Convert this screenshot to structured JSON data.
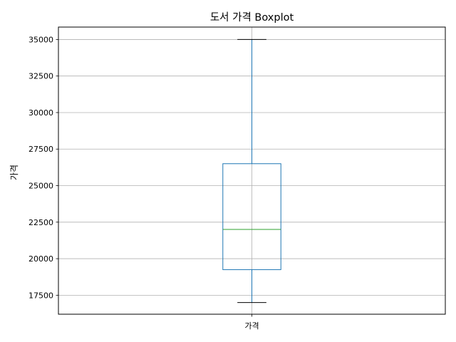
{
  "chart_data": {
    "type": "boxplot",
    "title": "도서 가격 Boxplot",
    "xlabel": "",
    "ylabel": "가격",
    "categories": [
      "가격"
    ],
    "boxes": [
      {
        "category": "가격",
        "whisker_low": 17000,
        "q1": 19250,
        "median": 22000,
        "q3": 26500,
        "whisker_high": 35000
      }
    ],
    "ylim": [
      16200,
      35850
    ],
    "yticks": [
      17500,
      20000,
      22500,
      25000,
      27500,
      30000,
      32500,
      35000
    ],
    "ytick_labels": [
      "17500",
      "20000",
      "22500",
      "25000",
      "27500",
      "30000",
      "32500",
      "35000"
    ],
    "grid": true,
    "colors": {
      "box": "#1f77b4",
      "median": "#2ca02c",
      "caps": "#000000",
      "grid": "#b0b0b0"
    }
  }
}
